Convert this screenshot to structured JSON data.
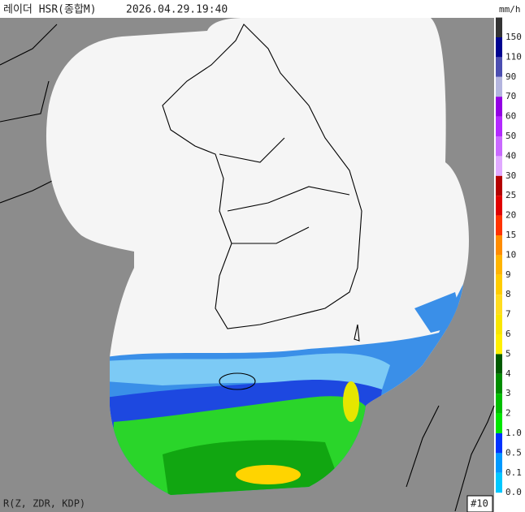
{
  "header": {
    "title": "레이더 HSR(종합M)",
    "time": "2026.04.29.19:40"
  },
  "legend": {
    "unit": "mm/h",
    "items": [
      {
        "label": "150",
        "color": "#333333"
      },
      {
        "label": "110",
        "color": "#000390"
      },
      {
        "label": "90",
        "color": "#4c4eb1"
      },
      {
        "label": "70",
        "color": "#b3b4de"
      },
      {
        "label": "60",
        "color": "#9300e4"
      },
      {
        "label": "50",
        "color": "#b329ff"
      },
      {
        "label": "40",
        "color": "#c969ff"
      },
      {
        "label": "30",
        "color": "#e0a9ff"
      },
      {
        "label": "25",
        "color": "#b40000"
      },
      {
        "label": "20",
        "color": "#e00000"
      },
      {
        "label": "15",
        "color": "#ff3300"
      },
      {
        "label": "10",
        "color": "#ff8c00"
      },
      {
        "label": "9",
        "color": "#ffb400"
      },
      {
        "label": "8",
        "color": "#ffcc00"
      },
      {
        "label": "7",
        "color": "#ffdc1f"
      },
      {
        "label": "6",
        "color": "#f9e600"
      },
      {
        "label": "5",
        "color": "#fff000"
      },
      {
        "label": "4",
        "color": "#005a00"
      },
      {
        "label": "3",
        "color": "#008c00"
      },
      {
        "label": "2",
        "color": "#00be00"
      },
      {
        "label": "1.0",
        "color": "#00e600"
      },
      {
        "label": "0.5",
        "color": "#0033ff"
      },
      {
        "label": "0.1",
        "color": "#0099ff"
      },
      {
        "label": "0.0",
        "color": "#00c8ff"
      }
    ]
  },
  "footer": {
    "method": "R(Z, ZDR, KDP)",
    "badge": "#10"
  }
}
